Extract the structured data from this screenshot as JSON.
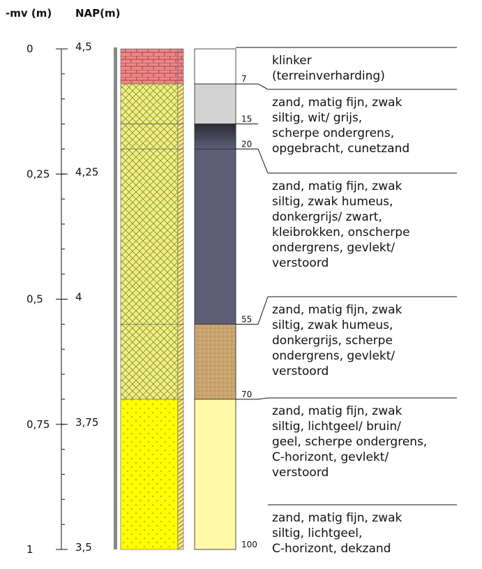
{
  "header": {
    "mv_label": "-mv (m)",
    "nap_label": "NAP(m)"
  },
  "scale": [
    {
      "mv": "0",
      "nap": "4,5"
    },
    {
      "mv": "0,25",
      "nap": "4,25"
    },
    {
      "mv": "0,5",
      "nap": "4"
    },
    {
      "mv": "0,75",
      "nap": "3,75"
    },
    {
      "mv": "1",
      "nap": "3,5"
    }
  ],
  "depth_labels": [
    7,
    15,
    20,
    55,
    70,
    100
  ],
  "descriptions": [
    [
      "klinker",
      "(terreinverharding)"
    ],
    [
      "zand, matig fijn, zwak",
      "siltig, wit/ grijs,",
      "scherpe ondergrens,",
      "opgebracht, cunetzand"
    ],
    [
      "zand, matig fijn, zwak",
      "siltig, zwak humeus,",
      "donkergrijs/ zwart,",
      "kleibrokken, onscherpe",
      "ondergrens, gevlekt/",
      "verstoord"
    ],
    [
      "zand, matig fijn, zwak",
      "siltig, zwak humeus,",
      "donkergrijs, scherpe",
      "ondergrens, gevlekt/",
      "verstoord"
    ],
    [
      "zand, matig fijn, zwak",
      "siltig, lichtgeel/ bruin/",
      "geel, scherpe ondergrens,",
      "C-horizont, gevlekt/",
      "verstoord"
    ],
    [
      "zand, matig fijn, zwak",
      "siltig, lichtgeel,",
      "C-horizont, dekzand"
    ]
  ]
}
